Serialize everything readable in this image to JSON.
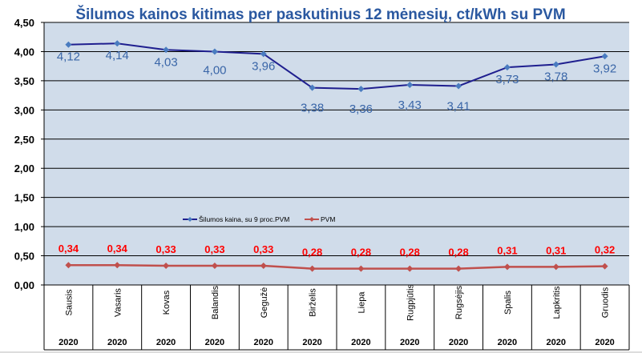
{
  "chart_data": {
    "type": "line",
    "title": "Šilumos kainos kitimas per paskutinius 12 mėnesių, ct/kWh su PVM",
    "categories": [
      "Sausis",
      "Vasaris",
      "Kovas",
      "Balandis",
      "Gegužė",
      "Birželis",
      "Liepa",
      "Rugpjūtis",
      "Rugsėjis",
      "Spalis",
      "Lapkritis",
      "Gruodis"
    ],
    "year_labels": [
      "2020",
      "2020",
      "2020",
      "2020",
      "2020",
      "2020",
      "2020",
      "2020",
      "2020",
      "2020",
      "2020",
      "2020"
    ],
    "series": [
      {
        "name": "Šilumos kaina, su 9 proc.PVM",
        "color": "#1f1f8f",
        "marker_color": "#4a7cc0",
        "label_color": "#3a66a8",
        "values": [
          4.12,
          4.14,
          4.03,
          4.0,
          3.96,
          3.38,
          3.36,
          3.43,
          3.41,
          3.73,
          3.78,
          3.92
        ],
        "labels": [
          "4,12",
          "4,14",
          "4,03",
          "4,00",
          "3,96",
          "3,38",
          "3,36",
          "3,43",
          "3,41",
          "3,73",
          "3,78",
          "3,92"
        ]
      },
      {
        "name": "PVM",
        "color": "#c0504d",
        "marker_color": "#c0504d",
        "label_color": "#ff0000",
        "values": [
          0.34,
          0.34,
          0.33,
          0.33,
          0.33,
          0.28,
          0.28,
          0.28,
          0.28,
          0.31,
          0.31,
          0.32
        ],
        "labels": [
          "0,34",
          "0,34",
          "0,33",
          "0,33",
          "0,33",
          "0,28",
          "0,28",
          "0,28",
          "0,28",
          "0,31",
          "0,31",
          "0,32"
        ]
      }
    ],
    "ylim": [
      0,
      4.5
    ],
    "yticks": [
      "0,00",
      "0,50",
      "1,00",
      "1,50",
      "2,00",
      "2,50",
      "3,00",
      "3,50",
      "4,00",
      "4,50"
    ],
    "grid": true,
    "legend": "center-right, inside plot",
    "plot_bg": "#d0dcea",
    "title_color": "#2a58a0"
  }
}
